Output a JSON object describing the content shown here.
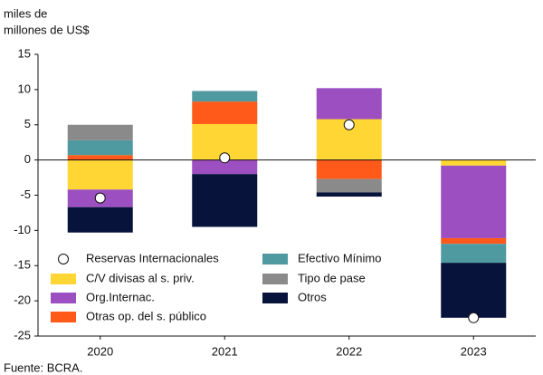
{
  "chart_data": {
    "type": "bar",
    "stacked": true,
    "ylabel": [
      "miles de",
      "millones de US$"
    ],
    "source": "Fuente: BCRA.",
    "categories": [
      "2020",
      "2021",
      "2022",
      "2023"
    ],
    "series": [
      {
        "name": "C/V divisas al s. priv.",
        "color": "#ffd633",
        "values": [
          -4.2,
          5.1,
          5.8,
          -0.8
        ]
      },
      {
        "name": "Org.Internac.",
        "color": "#9b4fc0",
        "values": [
          -2.5,
          -2.0,
          4.4,
          -10.3
        ]
      },
      {
        "name": "Otras op. del s. público",
        "color": "#ff5a1a",
        "values": [
          0.7,
          3.2,
          -2.7,
          -0.8
        ]
      },
      {
        "name": "Efectivo Mínimo",
        "color": "#4e9aa0",
        "values": [
          2.1,
          1.5,
          0,
          -2.7
        ]
      },
      {
        "name": "Tipo de pase",
        "color": "#8a8a8a",
        "values": [
          2.2,
          0,
          -1.9,
          0
        ]
      },
      {
        "name": "Otros",
        "color": "#07133a",
        "values": [
          -3.6,
          -7.5,
          -0.6,
          -7.8
        ]
      }
    ],
    "markers": {
      "name": "Reservas Internacionales",
      "values": [
        -5.4,
        0.3,
        5.0,
        -22.4
      ]
    },
    "ylim": [
      -25,
      15
    ],
    "yticks": [
      -25,
      -20,
      -15,
      -10,
      -5,
      0,
      5,
      10,
      15
    ],
    "legend": "lower left"
  }
}
